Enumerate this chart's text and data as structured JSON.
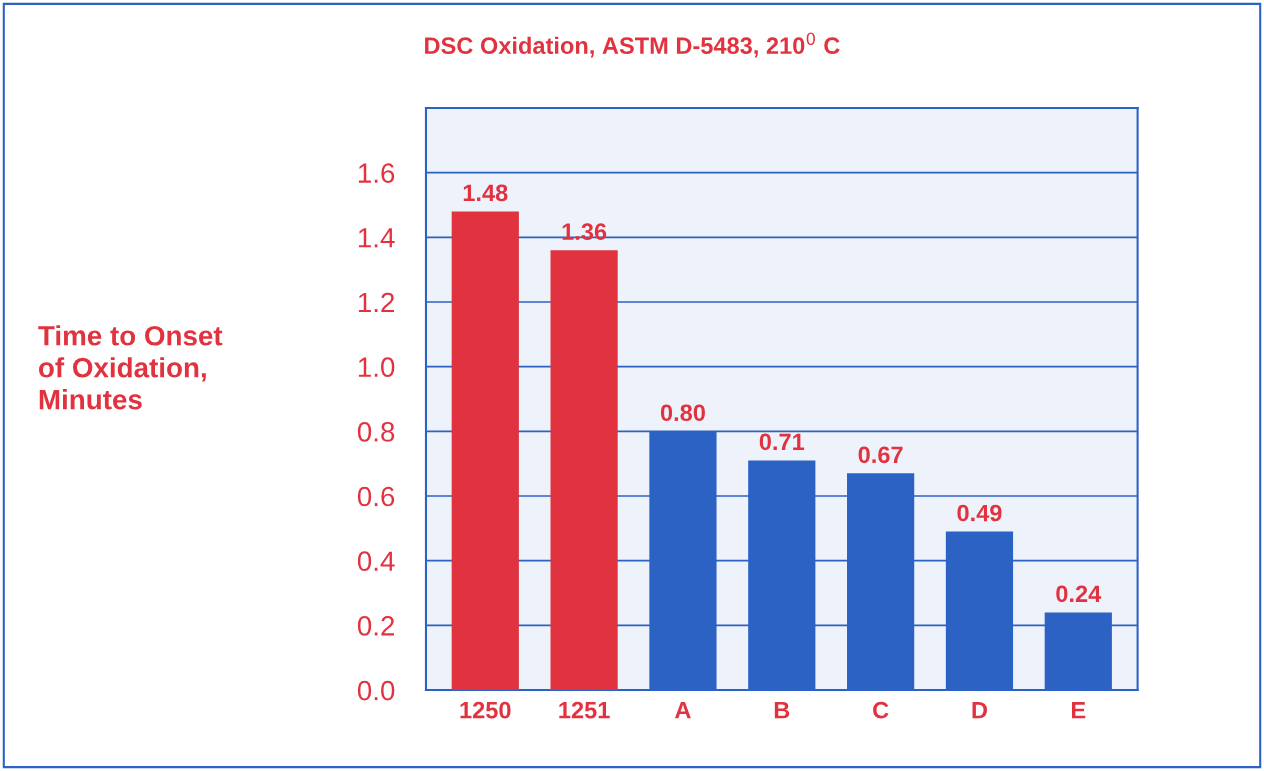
{
  "chart_data": {
    "type": "bar",
    "title": "DSC Oxidation, ASTM D-5483, 210$^{0}$ C",
    "ylabel": "Time to Onset\nof Oxidation,\nMinutes",
    "categories": [
      "1250",
      "1251",
      "A",
      "B",
      "C",
      "D",
      "E"
    ],
    "values": [
      1.48,
      1.36,
      0.8,
      0.71,
      0.67,
      0.49,
      0.24
    ],
    "colors": [
      "#e1323f",
      "#e1323f",
      "#2c62c4",
      "#2c62c4",
      "#2c62c4",
      "#2c62c4",
      "#2c62c4"
    ],
    "ylim": [
      0,
      1.8
    ],
    "yticks": [
      {
        "value": 0,
        "label": "0.0"
      },
      {
        "value": 0.2,
        "label": "0.2"
      },
      {
        "value": 0.4,
        "label": "0.4"
      },
      {
        "value": 0.6,
        "label": "0.6"
      },
      {
        "value": 0.8,
        "label": "0.8"
      },
      {
        "value": 1.0,
        "label": "1.0"
      },
      {
        "value": 1.2,
        "label": "1.2"
      },
      {
        "value": 1.4,
        "label": "1.4"
      },
      {
        "value": 1.6,
        "label": "1.6"
      },
      {
        "value": 1.8,
        "label": null
      }
    ],
    "value_labels": [
      "1.48",
      "1.36",
      "0.80",
      "0.71",
      "0.67",
      "0.49",
      "0.24"
    ],
    "grid": "y"
  }
}
